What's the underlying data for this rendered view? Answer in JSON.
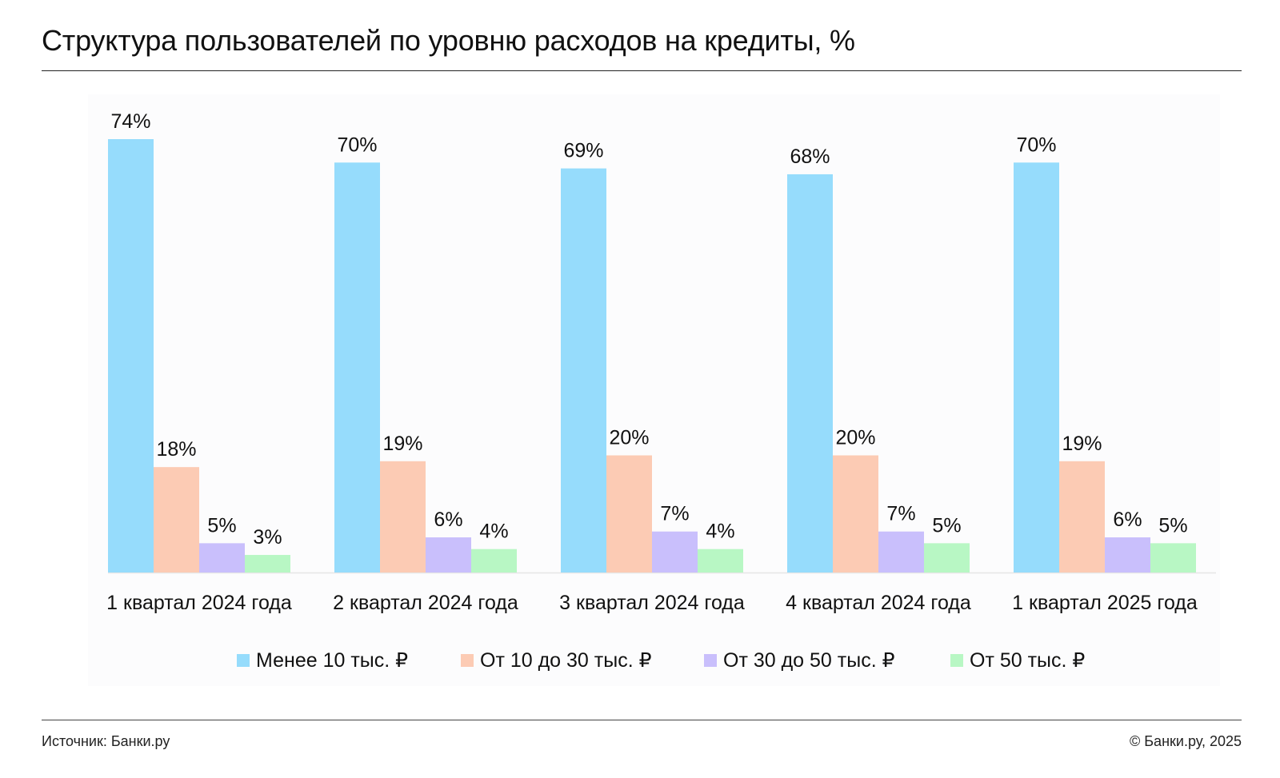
{
  "title": "Структура пользователей по уровню расходов на кредиты, %",
  "source": "Источник: Банки.ру",
  "copyright": "© Банки.ру, 2025",
  "chart_data": {
    "type": "bar",
    "categories": [
      "1 квартал 2024 года",
      "2 квартал 2024 года",
      "3 квартал 2024 года",
      "4 квартал 2024 года",
      "1 квартал 2025 года"
    ],
    "series": [
      {
        "name": "Менее 10 тыс. ₽",
        "color": "#96dcfc",
        "values": [
          74,
          70,
          69,
          68,
          70
        ],
        "labels": [
          "74%",
          "70%",
          "69%",
          "68%",
          "70%"
        ]
      },
      {
        "name": "От 10 до 30 тыс. ₽",
        "color": "#fccbb4",
        "values": [
          18,
          19,
          20,
          20,
          19
        ],
        "labels": [
          "18%",
          "19%",
          "20%",
          "20%",
          "19%"
        ]
      },
      {
        "name": "От 30 до 50 тыс. ₽",
        "color": "#c9bffc",
        "values": [
          5,
          6,
          7,
          7,
          6
        ],
        "labels": [
          "5%",
          "6%",
          "7%",
          "7%",
          "6%"
        ]
      },
      {
        "name": "От 50 тыс. ₽",
        "color": "#b8f7c4",
        "values": [
          3,
          4,
          4,
          5,
          5
        ],
        "labels": [
          "3%",
          "4%",
          "4%",
          "5%",
          "5%"
        ]
      }
    ],
    "ylim": [
      0,
      74
    ],
    "grid": false,
    "legend_position": "bottom"
  }
}
